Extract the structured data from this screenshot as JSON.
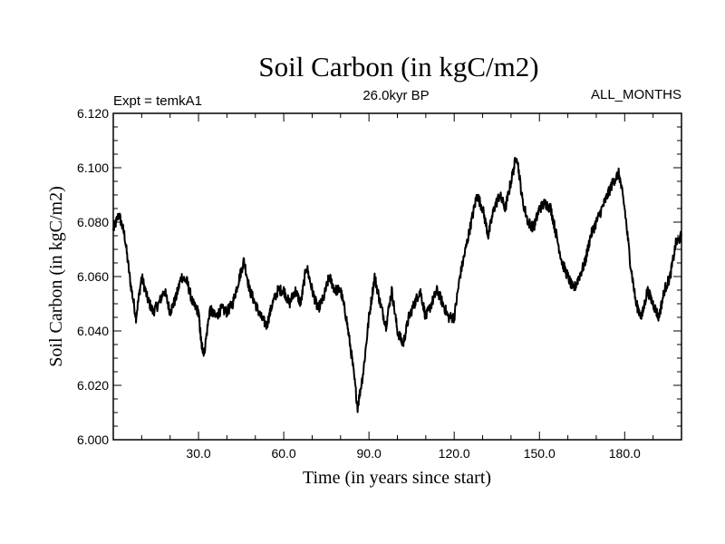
{
  "chart_data": {
    "type": "line",
    "title": "Soil Carbon (in kgC/m2)",
    "subtitle_left": "Expt = temkA1",
    "subtitle_center": "26.0kyr BP",
    "subtitle_right": "ALL_MONTHS",
    "xlabel": "Time (in years since start)",
    "ylabel": "Soil Carbon (in kgC/m2)",
    "xlim": [
      0,
      200
    ],
    "ylim": [
      6.0,
      6.12
    ],
    "xticks": [
      30,
      60,
      90,
      120,
      150,
      180
    ],
    "xtick_labels": [
      "30.0",
      "60.0",
      "90.0",
      "120.0",
      "150.0",
      "180.0"
    ],
    "yticks": [
      6.0,
      6.02,
      6.04,
      6.06,
      6.08,
      6.1,
      6.12
    ],
    "ytick_labels": [
      "6.000",
      "6.020",
      "6.040",
      "6.060",
      "6.080",
      "6.100",
      "6.120"
    ],
    "line_color": "#000000",
    "series": [
      {
        "name": "Soil Carbon",
        "x": [
          0,
          2,
          4,
          6,
          8,
          10,
          12,
          14,
          16,
          18,
          20,
          22,
          24,
          26,
          28,
          30,
          31,
          32,
          34,
          36,
          38,
          40,
          42,
          44,
          46,
          48,
          50,
          52,
          54,
          56,
          58,
          60,
          62,
          64,
          66,
          68,
          70,
          72,
          74,
          76,
          78,
          80,
          82,
          84,
          86,
          88,
          90,
          92,
          94,
          96,
          98,
          100,
          102,
          104,
          106,
          108,
          110,
          112,
          114,
          116,
          118,
          120,
          122,
          124,
          126,
          128,
          130,
          132,
          134,
          136,
          138,
          140,
          142,
          144,
          146,
          148,
          150,
          152,
          154,
          156,
          158,
          160,
          162,
          164,
          166,
          168,
          170,
          172,
          174,
          176,
          178,
          180,
          182,
          184,
          186,
          188,
          190,
          192,
          194,
          196,
          198,
          200
        ],
        "y": [
          6.077,
          6.083,
          6.075,
          6.058,
          6.045,
          6.06,
          6.052,
          6.047,
          6.05,
          6.055,
          6.047,
          6.052,
          6.06,
          6.058,
          6.05,
          6.047,
          6.035,
          6.032,
          6.048,
          6.045,
          6.048,
          6.047,
          6.05,
          6.058,
          6.066,
          6.055,
          6.05,
          6.045,
          6.042,
          6.05,
          6.055,
          6.055,
          6.05,
          6.055,
          6.05,
          6.064,
          6.055,
          6.048,
          6.052,
          6.06,
          6.055,
          6.055,
          6.045,
          6.03,
          6.012,
          6.025,
          6.045,
          6.06,
          6.05,
          6.042,
          6.055,
          6.04,
          6.035,
          6.045,
          6.05,
          6.055,
          6.045,
          6.05,
          6.055,
          6.05,
          6.045,
          6.045,
          6.06,
          6.07,
          6.08,
          6.09,
          6.085,
          6.075,
          6.085,
          6.09,
          6.085,
          6.095,
          6.105,
          6.088,
          6.08,
          6.078,
          6.085,
          6.087,
          6.085,
          6.075,
          6.065,
          6.06,
          6.055,
          6.06,
          6.065,
          6.075,
          6.08,
          6.085,
          6.09,
          6.095,
          6.098,
          6.085,
          6.065,
          6.05,
          6.045,
          6.055,
          6.05,
          6.045,
          6.055,
          6.06,
          6.072,
          6.075
        ]
      }
    ]
  }
}
